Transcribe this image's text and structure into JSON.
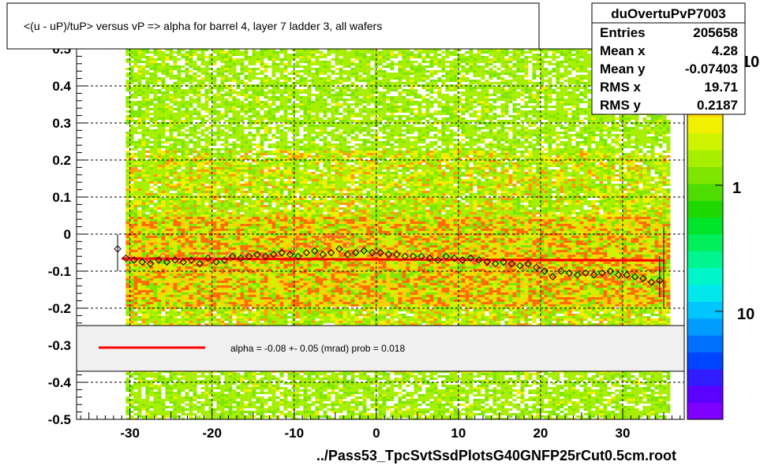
{
  "title": "<(u - uP)/tuP> versus   vP => alpha for barrel 4, layer 7 ladder 3, all wafers",
  "footer": "../Pass53_TpcSvtSsdPlotsG40GNFP25rCut0.5cm.root",
  "stats": {
    "name": "duOvertuPvP7003",
    "rows": [
      {
        "label": "Entries",
        "value": "205658"
      },
      {
        "label": "Mean x",
        "value": "4.28"
      },
      {
        "label": "Mean y",
        "value": "-0.07403"
      },
      {
        "label": "RMS x",
        "value": "19.71"
      },
      {
        "label": "RMS y",
        "value": "0.2187"
      }
    ]
  },
  "legend": {
    "fit_text": "alpha =   -0.08 +-  0.05 (mrad) prob = 0.018",
    "line_color": "#ff0000"
  },
  "colorbar": {
    "labels": [
      "10",
      "1",
      "10"
    ],
    "colors": [
      "#7f00ff",
      "#5c00ff",
      "#2f1dff",
      "#0045ff",
      "#0071ff",
      "#009bff",
      "#00c6ff",
      "#00e8ec",
      "#00f5c8",
      "#00f590",
      "#00ef5b",
      "#00e52a",
      "#1ed800",
      "#4fdc00",
      "#7ee600",
      "#a7ef00",
      "#cdf300",
      "#f1f000",
      "#ffcf00",
      "#ff9c00",
      "#ff6d00",
      "#ff3a00"
    ]
  },
  "chart_data": {
    "type": "heatmap",
    "title": "<(u - uP)/tuP> versus   vP => alpha for barrel 4, layer 7 ladder 3, all wafers",
    "xlabel": "../Pass53_TpcSvtSsdPlotsG40GNFP25rCut0.5cm.root",
    "ylabel": "",
    "xlim": [
      -36.5,
      37.5
    ],
    "ylim": [
      -0.5,
      0.5
    ],
    "xticks": [
      -30,
      -20,
      -10,
      0,
      10,
      20,
      30
    ],
    "yticks": [
      -0.5,
      -0.4,
      -0.3,
      -0.2,
      -0.1,
      0,
      0.1,
      0.2,
      0.3,
      0.4,
      0.5
    ],
    "ytick_labels": [
      "-0.5",
      "-0.4",
      "-0.3",
      "-0.2",
      "-0.1",
      "0",
      "0.1",
      "0.2",
      "0.3",
      "0.4",
      "0.5"
    ],
    "grid": true,
    "fit_line": {
      "x": [
        -31,
        35
      ],
      "y": [
        -0.066,
        -0.071
      ]
    },
    "profile_black": {
      "x": [
        -31.5,
        -30.5,
        -29.5,
        -28.5,
        -27.5,
        -26.5,
        -25.5,
        -24.5,
        -23.5,
        -22.5,
        -21.5,
        -20.5,
        -19.5,
        -18.5,
        -17.5,
        -16.5,
        -15.5,
        -14.5,
        -13.5,
        -12.5,
        -11.5,
        -10.5,
        -9.5,
        -8.5,
        -7.5,
        -6.5,
        -5.5,
        -4.5,
        -3.5,
        -2.5,
        -1.5,
        -0.5,
        0.5,
        1.5,
        2.5,
        3.5,
        4.5,
        5.5,
        6.5,
        7.5,
        8.5,
        9.5,
        10.5,
        11.5,
        12.5,
        13.5,
        14.5,
        15.5,
        16.5,
        17.5,
        18.5,
        19.5,
        20.5,
        21.5,
        22.5,
        23.5,
        24.5,
        25.5,
        26.5,
        27.5,
        28.5,
        29.5,
        30.5,
        31.5,
        32.5,
        33.5,
        34.5
      ],
      "y": [
        -0.04,
        -0.065,
        -0.07,
        -0.075,
        -0.08,
        -0.07,
        -0.075,
        -0.07,
        -0.075,
        -0.07,
        -0.08,
        -0.065,
        -0.075,
        -0.07,
        -0.06,
        -0.065,
        -0.06,
        -0.055,
        -0.06,
        -0.055,
        -0.05,
        -0.055,
        -0.06,
        -0.05,
        -0.045,
        -0.055,
        -0.05,
        -0.04,
        -0.055,
        -0.05,
        -0.045,
        -0.05,
        -0.05,
        -0.055,
        -0.055,
        -0.06,
        -0.06,
        -0.06,
        -0.065,
        -0.07,
        -0.06,
        -0.065,
        -0.07,
        -0.065,
        -0.07,
        -0.075,
        -0.08,
        -0.075,
        -0.08,
        -0.085,
        -0.08,
        -0.09,
        -0.1,
        -0.115,
        -0.1,
        -0.105,
        -0.11,
        -0.105,
        -0.11,
        -0.105,
        -0.1,
        -0.11,
        -0.11,
        -0.115,
        -0.12,
        -0.13,
        -0.125
      ]
    },
    "profile_red": {
      "x": [
        -30,
        -28,
        -26,
        -24,
        -22,
        -20,
        -18,
        -16,
        -14,
        -12,
        -10,
        -8,
        -6.5,
        -5.5,
        -4.5,
        -3.5,
        -2,
        0,
        2,
        4,
        6,
        8,
        10,
        12,
        14,
        16,
        18,
        20,
        22,
        24,
        26,
        28,
        30,
        32
      ],
      "y": [
        -0.065,
        -0.07,
        -0.06,
        -0.07,
        -0.055,
        -0.06,
        -0.055,
        -0.05,
        -0.06,
        -0.055,
        -0.04,
        -0.03,
        -0.015,
        -0.01,
        -0.005,
        -0.03,
        -0.04,
        -0.05,
        -0.06,
        -0.05,
        -0.06,
        -0.07,
        -0.07,
        -0.075,
        -0.08,
        -0.085,
        -0.09,
        -0.095,
        -0.1,
        -0.105,
        -0.105,
        -0.11,
        -0.12,
        -0.125
      ]
    },
    "error_bars": [
      {
        "x": -31.5,
        "y_low": -0.1,
        "y_high": 0.0
      },
      {
        "x": 34.5,
        "y_low": -0.17,
        "y_high": -0.06
      },
      {
        "x": 35.0,
        "y_low": -0.2,
        "y_high": 0.02
      }
    ]
  }
}
